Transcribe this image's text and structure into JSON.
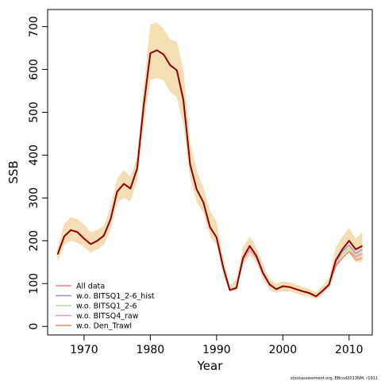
{
  "chart_data": {
    "type": "line",
    "xlabel": "Year",
    "ylabel": "SSB",
    "xlim": [
      1964.5,
      2013.5
    ],
    "ylim": [
      -20,
      740
    ],
    "xticks": [
      1970,
      1980,
      1990,
      2000,
      2010
    ],
    "yticks": [
      0,
      100,
      200,
      300,
      400,
      500,
      600,
      700
    ],
    "x": [
      1966,
      1967,
      1968,
      1969,
      1970,
      1971,
      1972,
      1973,
      1974,
      1975,
      1976,
      1977,
      1978,
      1979,
      1980,
      1981,
      1982,
      1983,
      1984,
      1985,
      1986,
      1987,
      1988,
      1989,
      1990,
      1991,
      1992,
      1993,
      1994,
      1995,
      1996,
      1997,
      1998,
      1999,
      2000,
      2001,
      2002,
      2003,
      2004,
      2005,
      2006,
      2007,
      2008,
      2009,
      2010,
      2011,
      2012
    ],
    "band": {
      "color": "#f5deb3",
      "upper": [
        182,
        240,
        255,
        250,
        238,
        220,
        225,
        235,
        280,
        345,
        365,
        350,
        395,
        560,
        705,
        710,
        695,
        670,
        665,
        600,
        430,
        365,
        325,
        270,
        245,
        160,
        95,
        110,
        185,
        210,
        185,
        145,
        110,
        100,
        105,
        103,
        98,
        92,
        88,
        80,
        95,
        115,
        185,
        210,
        230,
        205,
        220
      ],
      "lower": [
        150,
        190,
        200,
        195,
        185,
        172,
        180,
        190,
        225,
        288,
        300,
        292,
        340,
        470,
        575,
        580,
        575,
        548,
        535,
        470,
        345,
        290,
        265,
        210,
        190,
        120,
        80,
        85,
        145,
        165,
        150,
        110,
        85,
        78,
        82,
        82,
        77,
        72,
        70,
        62,
        75,
        90,
        140,
        160,
        175,
        150,
        150
      ]
    },
    "series": [
      {
        "name": "All data",
        "color": "#e8837c",
        "values": [
          168,
          210,
          225,
          220,
          205,
          192,
          200,
          212,
          250,
          315,
          333,
          322,
          368,
          515,
          638,
          645,
          635,
          610,
          598,
          528,
          378,
          320,
          290,
          232,
          208,
          138,
          85,
          90,
          160,
          188,
          165,
          125,
          98,
          87,
          94,
          92,
          87,
          82,
          78,
          70,
          83,
          98,
          150,
          175,
          190,
          170,
          180
        ]
      },
      {
        "name": "w.o. BITSQ1_2-6_hist",
        "color": "#9b8fe0",
        "values": [
          168,
          210,
          225,
          220,
          205,
          192,
          200,
          212,
          250,
          315,
          333,
          322,
          368,
          515,
          638,
          645,
          635,
          610,
          598,
          528,
          378,
          320,
          290,
          232,
          208,
          138,
          85,
          90,
          160,
          188,
          165,
          125,
          98,
          87,
          94,
          92,
          87,
          82,
          78,
          70,
          83,
          98,
          150,
          175,
          190,
          170,
          180
        ]
      },
      {
        "name": "w.o. BITSQ1_2-6",
        "color": "#b7dc95",
        "values": [
          168,
          210,
          225,
          220,
          205,
          192,
          200,
          212,
          250,
          315,
          333,
          322,
          368,
          515,
          638,
          645,
          635,
          610,
          598,
          528,
          378,
          320,
          290,
          232,
          208,
          138,
          85,
          90,
          160,
          188,
          165,
          125,
          98,
          87,
          94,
          92,
          87,
          82,
          78,
          70,
          83,
          98,
          148,
          168,
          182,
          164,
          172
        ]
      },
      {
        "name": "w.o. BITSQ4_raw",
        "color": "#f28cc8",
        "values": [
          168,
          210,
          225,
          220,
          205,
          192,
          200,
          212,
          250,
          315,
          333,
          322,
          368,
          515,
          638,
          645,
          635,
          610,
          598,
          528,
          378,
          320,
          290,
          232,
          208,
          138,
          85,
          90,
          155,
          178,
          160,
          122,
          96,
          86,
          92,
          91,
          86,
          81,
          77,
          69,
          82,
          96,
          145,
          160,
          175,
          162,
          170
        ]
      },
      {
        "name": "w.o. Den_Trawl",
        "color": "#ef8a62",
        "values": [
          168,
          210,
          225,
          220,
          205,
          192,
          200,
          212,
          250,
          315,
          333,
          322,
          368,
          515,
          638,
          645,
          635,
          610,
          598,
          528,
          378,
          320,
          290,
          232,
          208,
          138,
          85,
          90,
          160,
          185,
          165,
          125,
          98,
          87,
          94,
          92,
          87,
          82,
          78,
          70,
          83,
          98,
          140,
          160,
          175,
          155,
          160
        ]
      },
      {
        "name": "",
        "color": "#8b0000",
        "values": [
          168,
          210,
          225,
          220,
          205,
          192,
          200,
          212,
          250,
          315,
          333,
          322,
          368,
          515,
          638,
          645,
          635,
          610,
          598,
          528,
          378,
          320,
          290,
          232,
          208,
          138,
          85,
          90,
          160,
          188,
          165,
          125,
          98,
          87,
          94,
          92,
          87,
          82,
          78,
          70,
          83,
          98,
          155,
          180,
          200,
          180,
          188
        ]
      }
    ],
    "legend": {
      "placement": "bottom-left",
      "entries": [
        "All data",
        "w.o. BITSQ1_2-6_hist",
        "w.o. BITSQ1_2-6",
        "w.o. BITSQ4_raw",
        "w.o. Den_Trawl"
      ]
    },
    "credit": "stockassessment.org, EBcod2013NM, r1911"
  }
}
